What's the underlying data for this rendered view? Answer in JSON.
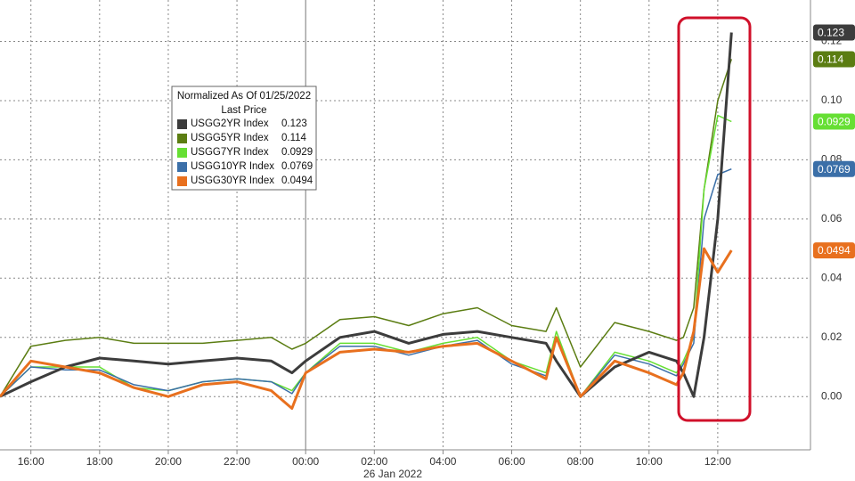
{
  "chart_data": {
    "type": "line",
    "legend_title": "Normalized As Of 01/25/2022",
    "legend_subtitle": "Last Price",
    "annotation": "26 Jan 2022",
    "x": [
      15.1,
      16,
      17,
      18,
      19,
      20,
      21,
      22,
      23,
      23.6,
      24,
      25,
      26,
      27,
      28,
      29,
      30,
      31,
      31.3,
      32,
      33,
      34,
      34.8,
      35,
      35.3,
      35.6,
      36,
      36.4
    ],
    "series": [
      {
        "name": "USGG2YR Index",
        "color": "#3c3c3c",
        "values": [
          0,
          0.005,
          0.01,
          0.013,
          0.012,
          0.011,
          0.012,
          0.013,
          0.012,
          0.008,
          0.012,
          0.02,
          0.022,
          0.018,
          0.021,
          0.022,
          0.02,
          0.018,
          0.012,
          0.0,
          0.01,
          0.015,
          0.012,
          0.008,
          0.0,
          0.02,
          0.06,
          0.123
        ]
      },
      {
        "name": "USGG5YR Index",
        "color": "#5b7d12",
        "values": [
          0,
          0.017,
          0.019,
          0.02,
          0.018,
          0.018,
          0.018,
          0.019,
          0.02,
          0.016,
          0.018,
          0.026,
          0.027,
          0.024,
          0.028,
          0.03,
          0.024,
          0.022,
          0.03,
          0.01,
          0.025,
          0.022,
          0.019,
          0.02,
          0.03,
          0.07,
          0.1,
          0.114
        ]
      },
      {
        "name": "USGG7YR Index",
        "color": "#66df33",
        "values": [
          0,
          0.01,
          0.01,
          0.01,
          0.003,
          0.002,
          0.005,
          0.006,
          0.005,
          0.002,
          0.008,
          0.018,
          0.018,
          0.015,
          0.018,
          0.02,
          0.012,
          0.008,
          0.022,
          0.0,
          0.015,
          0.012,
          0.008,
          0.012,
          0.02,
          0.07,
          0.095,
          0.0929
        ]
      },
      {
        "name": "USGG10YR Index",
        "color": "#3b6fa8",
        "values": [
          0,
          0.01,
          0.009,
          0.009,
          0.004,
          0.002,
          0.005,
          0.006,
          0.005,
          0.001,
          0.008,
          0.017,
          0.017,
          0.014,
          0.017,
          0.019,
          0.011,
          0.007,
          0.02,
          0.0,
          0.014,
          0.011,
          0.007,
          0.011,
          0.018,
          0.06,
          0.075,
          0.0769
        ]
      },
      {
        "name": "USGG30YR Index",
        "color": "#e8701e",
        "values": [
          0,
          0.012,
          0.01,
          0.008,
          0.003,
          0.0,
          0.004,
          0.005,
          0.002,
          -0.004,
          0.008,
          0.015,
          0.016,
          0.015,
          0.017,
          0.018,
          0.012,
          0.006,
          0.02,
          0.0,
          0.012,
          0.008,
          0.004,
          0.008,
          0.022,
          0.05,
          0.042,
          0.0494
        ]
      }
    ],
    "xlim": [
      15.1,
      38.7
    ],
    "xticks": [
      {
        "value": 16,
        "label": "16:00"
      },
      {
        "value": 18,
        "label": "18:00"
      },
      {
        "value": 20,
        "label": "20:00"
      },
      {
        "value": 22,
        "label": "22:00"
      },
      {
        "value": 24,
        "label": "00:00"
      },
      {
        "value": 26,
        "label": "02:00"
      },
      {
        "value": 28,
        "label": "04:00"
      },
      {
        "value": 30,
        "label": "06:00"
      },
      {
        "value": 32,
        "label": "08:00"
      },
      {
        "value": 34,
        "label": "10:00"
      },
      {
        "value": 36,
        "label": "12:00"
      }
    ],
    "ylim": [
      -0.018,
      0.134
    ],
    "yticks": [
      {
        "value": 0,
        "label": "0.00"
      },
      {
        "value": 0.02,
        "label": "0.02"
      },
      {
        "value": 0.04,
        "label": "0.04"
      },
      {
        "value": 0.06,
        "label": "0.06"
      },
      {
        "value": 0.08,
        "label": "0.08"
      },
      {
        "value": 0.1,
        "label": "0.10"
      },
      {
        "value": 0.12,
        "label": "0.12"
      }
    ],
    "grid": true
  }
}
